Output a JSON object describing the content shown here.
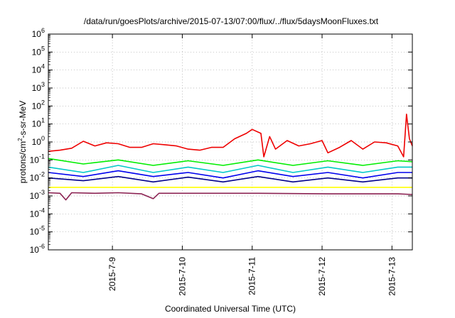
{
  "chart_data": {
    "type": "line",
    "title": "/data/run/goesPlots/archive/2015-07-13/07:00/flux/../flux/5daysMoonFluxes.txt",
    "xlabel": "Coordinated Universal Time (UTC)",
    "ylabel": {
      "pre": "protons/cm",
      "sup": "2",
      "post": "-s-sr-MeV"
    },
    "y_scale": "log",
    "ylim_exp": [
      -6,
      6
    ],
    "y_ticks": [
      {
        "base": "10",
        "exp": "-6"
      },
      {
        "base": "10",
        "exp": "-5"
      },
      {
        "base": "10",
        "exp": "-4"
      },
      {
        "base": "10",
        "exp": "-3"
      },
      {
        "base": "10",
        "exp": "-2"
      },
      {
        "base": "10",
        "exp": "-1"
      },
      {
        "base": "10",
        "exp": "0"
      },
      {
        "base": "10",
        "exp": "1"
      },
      {
        "base": "10",
        "exp": "2"
      },
      {
        "base": "10",
        "exp": "3"
      },
      {
        "base": "10",
        "exp": "4"
      },
      {
        "base": "10",
        "exp": "5"
      },
      {
        "base": "10",
        "exp": "6"
      }
    ],
    "x_range_days": [
      "2015-07-08T02:00",
      "2015-07-13T07:00"
    ],
    "x_ticks": [
      {
        "label": "2015-7-9",
        "date": "2015-07-09"
      },
      {
        "label": "2015-7-10",
        "date": "2015-07-10"
      },
      {
        "label": "2015-7-11",
        "date": "2015-07-11"
      },
      {
        "label": "2015-7-12",
        "date": "2015-07-12"
      },
      {
        "label": "2015-7-13",
        "date": "2015-07-13"
      }
    ],
    "grid": true,
    "legend": "none",
    "series": [
      {
        "color": "#ee0000",
        "points": [
          [
            "2015-07-08T02:00",
            0.3
          ],
          [
            "2015-07-08T06:00",
            0.35
          ],
          [
            "2015-07-08T10:00",
            0.45
          ],
          [
            "2015-07-08T14:00",
            1.1
          ],
          [
            "2015-07-08T18:00",
            0.6
          ],
          [
            "2015-07-08T22:00",
            0.9
          ],
          [
            "2015-07-09T02:00",
            0.8
          ],
          [
            "2015-07-09T06:00",
            0.5
          ],
          [
            "2015-07-09T10:00",
            0.5
          ],
          [
            "2015-07-09T14:00",
            0.8
          ],
          [
            "2015-07-09T18:00",
            0.7
          ],
          [
            "2015-07-09T22:00",
            0.6
          ],
          [
            "2015-07-10T02:00",
            0.4
          ],
          [
            "2015-07-10T06:00",
            0.35
          ],
          [
            "2015-07-10T10:00",
            0.5
          ],
          [
            "2015-07-10T14:00",
            0.5
          ],
          [
            "2015-07-10T18:00",
            1.5
          ],
          [
            "2015-07-10T22:00",
            3.0
          ],
          [
            "2015-07-11T00:00",
            5.0
          ],
          [
            "2015-07-11T03:00",
            3.0
          ],
          [
            "2015-07-11T04:00",
            0.15
          ],
          [
            "2015-07-11T06:00",
            2.0
          ],
          [
            "2015-07-11T08:00",
            0.4
          ],
          [
            "2015-07-11T12:00",
            1.2
          ],
          [
            "2015-07-11T16:00",
            0.6
          ],
          [
            "2015-07-11T20:00",
            0.8
          ],
          [
            "2015-07-12T00:00",
            1.2
          ],
          [
            "2015-07-12T02:00",
            0.25
          ],
          [
            "2015-07-12T06:00",
            0.5
          ],
          [
            "2015-07-12T10:00",
            1.2
          ],
          [
            "2015-07-12T14:00",
            0.4
          ],
          [
            "2015-07-12T18:00",
            1.0
          ],
          [
            "2015-07-12T22:00",
            0.9
          ],
          [
            "2015-07-13T02:00",
            0.6
          ],
          [
            "2015-07-13T04:00",
            0.15
          ],
          [
            "2015-07-13T05:00",
            35.0
          ],
          [
            "2015-07-13T06:00",
            1.5
          ],
          [
            "2015-07-13T07:00",
            0.6
          ]
        ]
      },
      {
        "color": "#00ee00",
        "points": [
          [
            "2015-07-08T02:00",
            0.12
          ],
          [
            "2015-07-08T14:00",
            0.06
          ],
          [
            "2015-07-09T02:00",
            0.1
          ],
          [
            "2015-07-09T14:00",
            0.05
          ],
          [
            "2015-07-10T02:00",
            0.09
          ],
          [
            "2015-07-10T14:00",
            0.05
          ],
          [
            "2015-07-11T02:00",
            0.1
          ],
          [
            "2015-07-11T14:00",
            0.05
          ],
          [
            "2015-07-12T02:00",
            0.09
          ],
          [
            "2015-07-12T14:00",
            0.05
          ],
          [
            "2015-07-13T02:00",
            0.09
          ],
          [
            "2015-07-13T07:00",
            0.08
          ]
        ]
      },
      {
        "color": "#00c8c8",
        "points": [
          [
            "2015-07-08T02:00",
            0.04
          ],
          [
            "2015-07-08T14:00",
            0.02
          ],
          [
            "2015-07-09T02:00",
            0.05
          ],
          [
            "2015-07-09T14:00",
            0.02
          ],
          [
            "2015-07-10T02:00",
            0.04
          ],
          [
            "2015-07-10T14:00",
            0.02
          ],
          [
            "2015-07-11T02:00",
            0.05
          ],
          [
            "2015-07-11T14:00",
            0.02
          ],
          [
            "2015-07-12T02:00",
            0.04
          ],
          [
            "2015-07-12T14:00",
            0.02
          ],
          [
            "2015-07-13T02:00",
            0.04
          ],
          [
            "2015-07-13T07:00",
            0.04
          ]
        ]
      },
      {
        "color": "#0000ee",
        "points": [
          [
            "2015-07-08T02:00",
            0.02
          ],
          [
            "2015-07-08T14:00",
            0.012
          ],
          [
            "2015-07-09T02:00",
            0.025
          ],
          [
            "2015-07-09T14:00",
            0.012
          ],
          [
            "2015-07-10T02:00",
            0.02
          ],
          [
            "2015-07-10T14:00",
            0.01
          ],
          [
            "2015-07-11T02:00",
            0.025
          ],
          [
            "2015-07-11T14:00",
            0.012
          ],
          [
            "2015-07-12T02:00",
            0.02
          ],
          [
            "2015-07-12T14:00",
            0.01
          ],
          [
            "2015-07-13T02:00",
            0.02
          ],
          [
            "2015-07-13T07:00",
            0.02
          ]
        ]
      },
      {
        "color": "#00008b",
        "points": [
          [
            "2015-07-08T02:00",
            0.01
          ],
          [
            "2015-07-08T14:00",
            0.007
          ],
          [
            "2015-07-09T02:00",
            0.012
          ],
          [
            "2015-07-09T14:00",
            0.006
          ],
          [
            "2015-07-10T02:00",
            0.011
          ],
          [
            "2015-07-10T14:00",
            0.006
          ],
          [
            "2015-07-11T02:00",
            0.012
          ],
          [
            "2015-07-11T14:00",
            0.006
          ],
          [
            "2015-07-12T02:00",
            0.01
          ],
          [
            "2015-07-12T14:00",
            0.006
          ],
          [
            "2015-07-13T02:00",
            0.01
          ],
          [
            "2015-07-13T07:00",
            0.01
          ]
        ]
      },
      {
        "color": "#ffff00",
        "points": [
          [
            "2015-07-08T02:00",
            0.003
          ],
          [
            "2015-07-09T02:00",
            0.003
          ],
          [
            "2015-07-10T02:00",
            0.003
          ],
          [
            "2015-07-11T02:00",
            0.003
          ],
          [
            "2015-07-12T02:00",
            0.003
          ],
          [
            "2015-07-13T02:00",
            0.003
          ],
          [
            "2015-07-13T07:00",
            0.003
          ]
        ]
      },
      {
        "color": "#8b2252",
        "points": [
          [
            "2015-07-08T02:00",
            0.0015
          ],
          [
            "2015-07-08T06:00",
            0.0014
          ],
          [
            "2015-07-08T08:00",
            0.0006
          ],
          [
            "2015-07-08T10:00",
            0.0015
          ],
          [
            "2015-07-08T18:00",
            0.0014
          ],
          [
            "2015-07-09T02:00",
            0.0015
          ],
          [
            "2015-07-09T10:00",
            0.0013
          ],
          [
            "2015-07-09T14:00",
            0.0007
          ],
          [
            "2015-07-09T16:00",
            0.0014
          ],
          [
            "2015-07-10T02:00",
            0.0014
          ],
          [
            "2015-07-11T02:00",
            0.0014
          ],
          [
            "2015-07-12T02:00",
            0.0013
          ],
          [
            "2015-07-13T02:00",
            0.0013
          ],
          [
            "2015-07-13T07:00",
            0.0012
          ]
        ]
      }
    ]
  }
}
